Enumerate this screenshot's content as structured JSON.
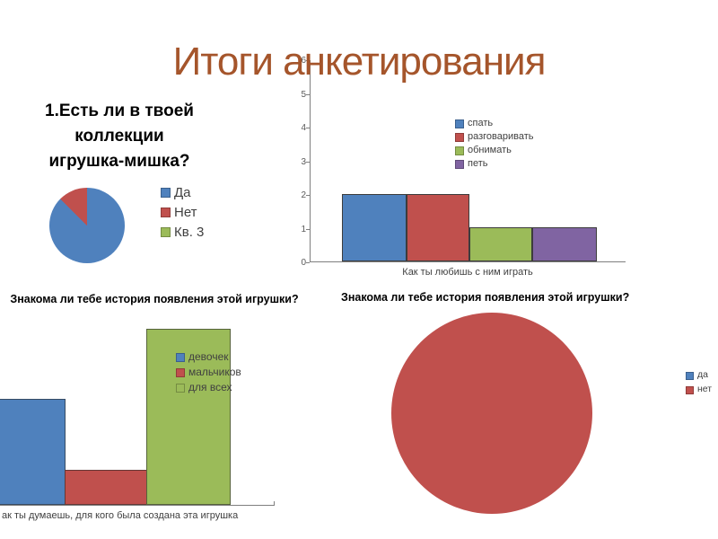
{
  "slide": {
    "title": "Итоги анкетирования",
    "title_color": "#A5552B",
    "background": "#ffffff"
  },
  "palette": {
    "blue": "#4F81BD",
    "red": "#C0504D",
    "green": "#9BBB59",
    "purple": "#8064A2",
    "axis_gray": "#7f7f7f",
    "label_gray": "#3f3f3f"
  },
  "chart_data": [
    {
      "id": "collection-pie",
      "type": "pie",
      "title": "1.Есть ли в твоей коллекции игрушка-мишка?",
      "title_lines": [
        "1.Есть ли в твоей",
        "коллекции",
        "игрушка-мишка?"
      ],
      "labels": [
        "Да",
        "Нет",
        "Кв. 3"
      ],
      "values_percent": [
        87.5,
        12.5,
        0
      ],
      "colors": [
        "#4F81BD",
        "#C0504D",
        "#9BBB59"
      ],
      "legend_position": "right",
      "start_angle_deg": 0
    },
    {
      "id": "play-bar",
      "type": "bar",
      "title": "",
      "categories": [
        "Как ты любишь с ним играть"
      ],
      "xlabel": "Как ты любишь с ним играть",
      "series": [
        {
          "name": "спать",
          "values": [
            2
          ],
          "color": "#4F81BD"
        },
        {
          "name": "разговаривать",
          "values": [
            2
          ],
          "color": "#C0504D"
        },
        {
          "name": "обнимать",
          "values": [
            1
          ],
          "color": "#9BBB59"
        },
        {
          "name": "петь",
          "values": [
            1
          ],
          "color": "#8064A2"
        }
      ],
      "ylim": [
        0,
        6
      ],
      "yticks": [
        0,
        1,
        2,
        3,
        4,
        5,
        6
      ],
      "grid": false,
      "legend_position": "right"
    },
    {
      "id": "audience-bar",
      "type": "bar",
      "title": "Знакома ли тебе история появления этой игрушки?",
      "xlabel": "ак ты думаешь, для кого была создана эта игрушка",
      "series": [
        {
          "name": "девочек",
          "values": [
            3
          ],
          "color": "#4F81BD"
        },
        {
          "name": "мальчиков",
          "values": [
            1
          ],
          "color": "#C0504D"
        },
        {
          "name": "для всех",
          "values": [
            5
          ],
          "color": "#9BBB59"
        }
      ],
      "ylim": [
        0,
        5.2
      ],
      "grid": false,
      "legend_position": "overlay",
      "note_left_edge_clipped": true
    },
    {
      "id": "history-pie",
      "type": "pie",
      "title": "Знакома ли тебе история появления этой игрушки?",
      "labels": [
        "да",
        "нет"
      ],
      "values_percent": [
        0,
        100
      ],
      "colors": [
        "#4F81BD",
        "#C0504D"
      ],
      "legend_position": "right",
      "start_angle_deg": 0
    }
  ]
}
